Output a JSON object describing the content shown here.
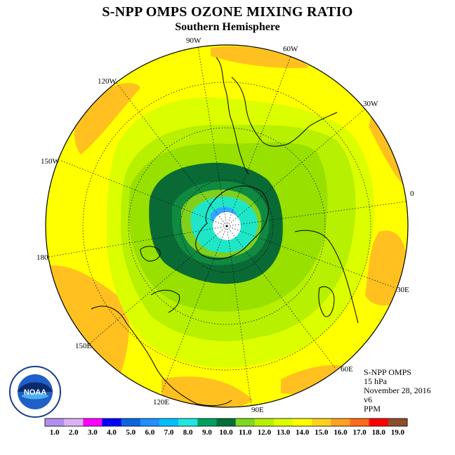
{
  "title": "S-NPP OMPS OZONE MIXING RATIO",
  "subtitle": "Southern Hemisphere",
  "info": {
    "instrument": "S-NPP OMPS",
    "level": "15 hPa",
    "date": "November 28, 2016",
    "version": "v6",
    "units": "PPM"
  },
  "logo_text": "NOAA",
  "longitude_labels": [
    "0",
    "30E",
    "60E",
    "90E",
    "120E",
    "150E",
    "180",
    "150W",
    "120W",
    "90W",
    "60W",
    "30W"
  ],
  "colorbar": {
    "ticks": [
      "1.0",
      "2.0",
      "3.0",
      "4.0",
      "5.0",
      "6.0",
      "7.0",
      "8.0",
      "9.0",
      "10.0",
      "11.0",
      "12.0",
      "13.0",
      "14.0",
      "15.0",
      "16.0",
      "17.0",
      "18.0",
      "19.0"
    ],
    "colors": [
      "#b38ef0",
      "#dcb2f2",
      "#ff00ff",
      "#0000ff",
      "#0a66e0",
      "#1e90ff",
      "#00bfff",
      "#20e6e0",
      "#00a060",
      "#006f3a",
      "#80d820",
      "#b7f000",
      "#dcff00",
      "#ffff00",
      "#ffd21a",
      "#ffa020",
      "#ff6a18",
      "#ff0000",
      "#8b4d2e"
    ]
  },
  "legend_colors": {
    "outer_yellow": "#ffff00",
    "orange": "#ffc020",
    "yellowgreen": "#dcff00",
    "lime": "#b7f000",
    "green_light": "#98e000",
    "green_mid": "#7fcf1c",
    "green_dark": "#0a6a35",
    "green_medium": "#0f8a40",
    "aqua": "#20e6c8",
    "blue": "#30a8ff"
  }
}
